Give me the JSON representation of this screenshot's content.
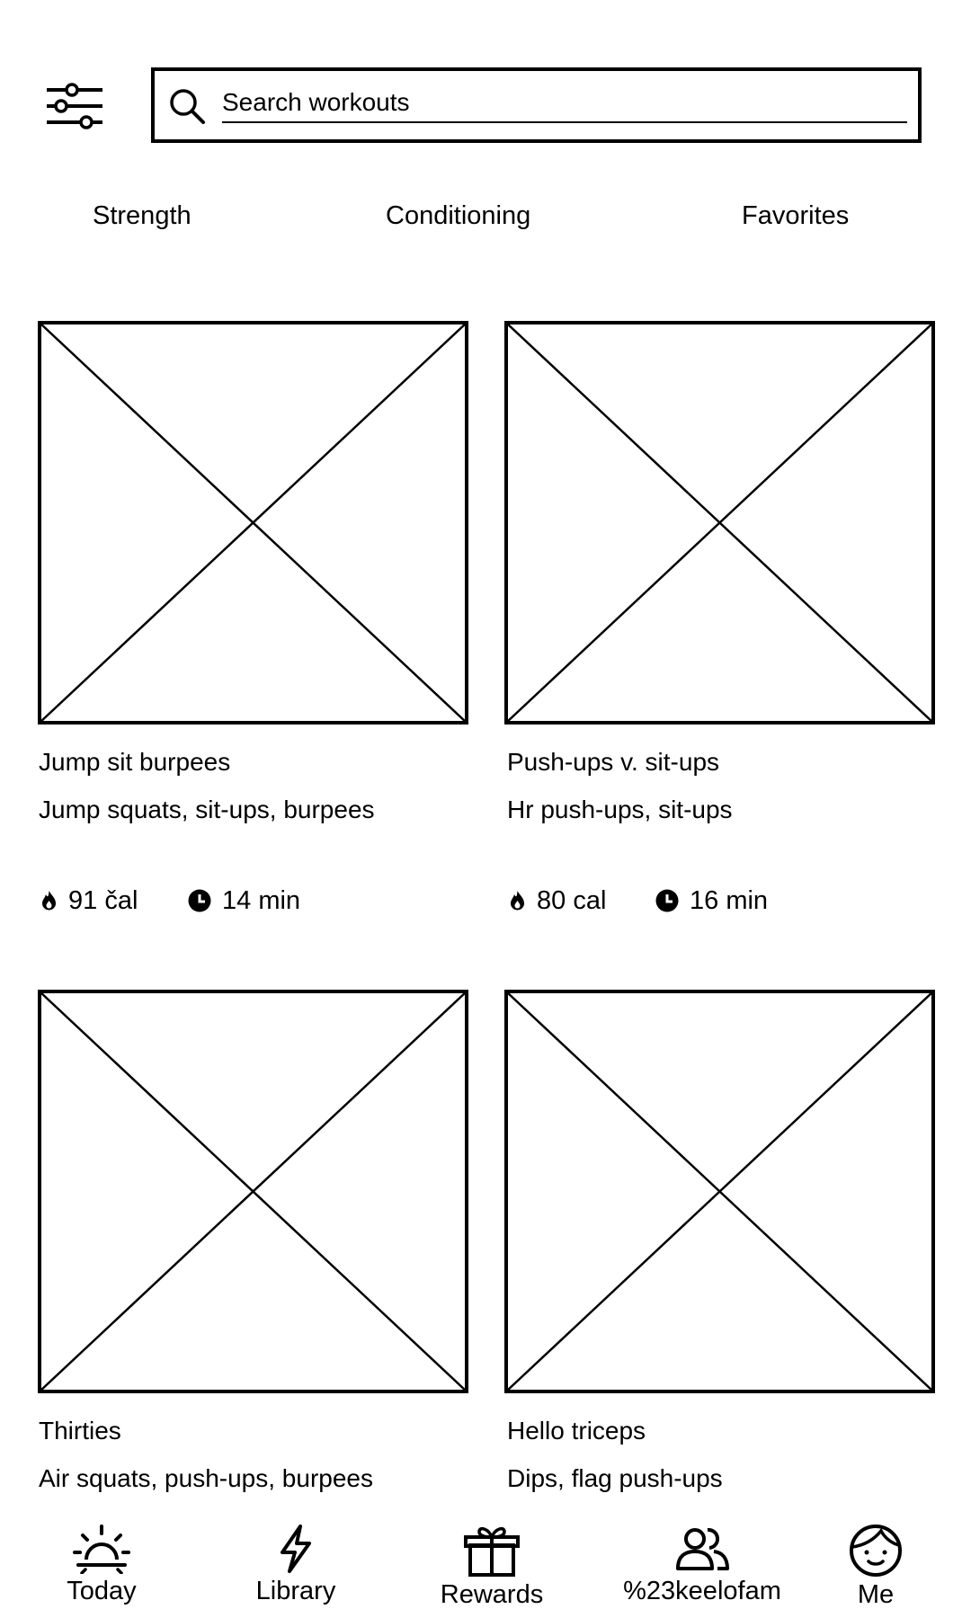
{
  "search": {
    "placeholder": "Search workouts",
    "value": ""
  },
  "tabs": [
    {
      "label": "Strength"
    },
    {
      "label": "Conditioning"
    },
    {
      "label": "Favorites"
    }
  ],
  "workouts": [
    {
      "title": "Jump sit burpees",
      "subtitle": "Jump squats, sit-ups, burpees",
      "calories": "91 čal",
      "duration": "14 min"
    },
    {
      "title": "Push-ups v. sit-ups",
      "subtitle": "Hr push-ups, sit-ups",
      "calories": "80 cal",
      "duration": "16 min"
    },
    {
      "title": "Thirties",
      "subtitle": "Air squats, push-ups, burpees"
    },
    {
      "title": "Hello triceps",
      "subtitle": "Dips, flag push-ups"
    }
  ],
  "bottom_nav": [
    {
      "label": "Today",
      "icon": "sun-icon"
    },
    {
      "label": "Library",
      "icon": "lightning-icon"
    },
    {
      "label": "Rewards",
      "icon": "gift-icon"
    },
    {
      "label": "%23keelofam",
      "icon": "group-icon"
    },
    {
      "label": "Me",
      "icon": "face-icon"
    }
  ],
  "icons": {
    "filter": "sliders-icon",
    "search": "search-icon",
    "calories": "flame-icon",
    "duration": "clock-icon",
    "thumbnail": "image-placeholder"
  },
  "colors": {
    "foreground": "#000000",
    "background": "#ffffff"
  }
}
